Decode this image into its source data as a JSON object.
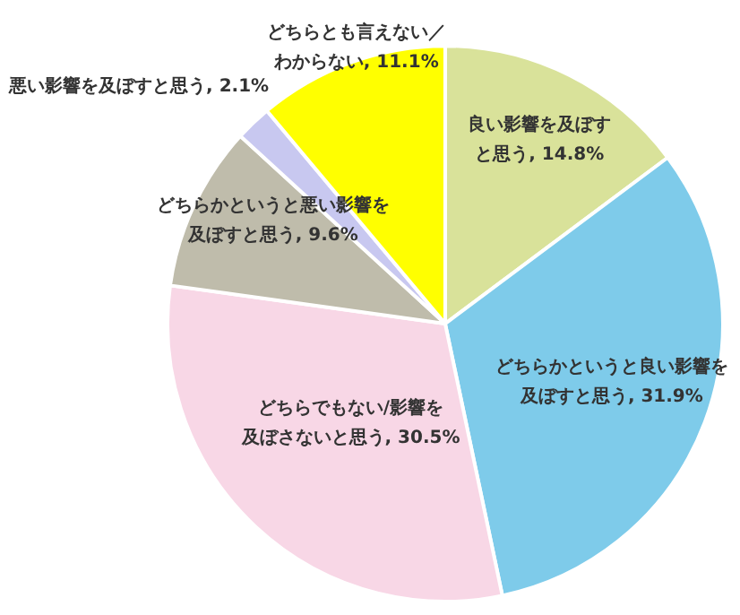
{
  "chart_data": {
    "type": "pie",
    "categories": [
      "良い影響を及ぼすと思う",
      "どちらかというと良い影響を及ぼすと思う",
      "どちらでもない/影響を及ぼさないと思う",
      "どちらかというと悪い影響を及ぼすと思う",
      "悪い影響を及ぼすと思う",
      "どちらとも言えない／わからない"
    ],
    "values": [
      14.8,
      31.9,
      30.5,
      9.6,
      2.1,
      11.1
    ],
    "value_labels": [
      "14.8%",
      "31.9%",
      "30.5%",
      "9.6%",
      "2.1%",
      "11.1%"
    ],
    "colors": [
      "#d9e29a",
      "#7ecbea",
      "#f8d7e6",
      "#bfbcab",
      "#c8c8f0",
      "#ffff00"
    ]
  }
}
